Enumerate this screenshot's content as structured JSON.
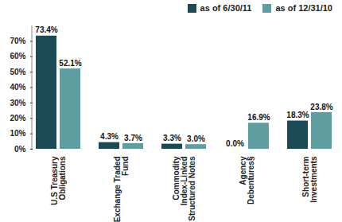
{
  "chart_data": {
    "type": "bar",
    "categories": [
      "U.S Treasury Obligations",
      "Exchange Traded Fund",
      "Commodity Index-Linked Structured Notes",
      "Agency Debentures§",
      "Short-term Investments"
    ],
    "series": [
      {
        "name": "as of 6/30/11",
        "color": "#1b4a55",
        "values": [
          73.4,
          4.3,
          3.3,
          0.0,
          18.3
        ],
        "value_labels": [
          "73.4%",
          "4.3%",
          "3.3%",
          "0.0%",
          "18.3%"
        ]
      },
      {
        "name": "as of 12/31/10",
        "color": "#5f9ea0",
        "values": [
          52.1,
          3.7,
          3.0,
          16.9,
          23.8
        ],
        "value_labels": [
          "52.1%",
          "3.7%",
          "3.0%",
          "16.9%",
          "23.8%"
        ]
      }
    ],
    "ylim": [
      0,
      80
    ],
    "yticks": [
      {
        "value": 0,
        "label": "0%"
      },
      {
        "value": 10,
        "label": "10%"
      },
      {
        "value": 20,
        "label": "20%"
      },
      {
        "value": 30,
        "label": "30%"
      },
      {
        "value": 40,
        "label": "40%"
      },
      {
        "value": 50,
        "label": "50%"
      },
      {
        "value": 60,
        "label": "60%"
      },
      {
        "value": 70,
        "label": "70%"
      }
    ],
    "grid": false,
    "legend": "top right",
    "data_labels": true
  }
}
